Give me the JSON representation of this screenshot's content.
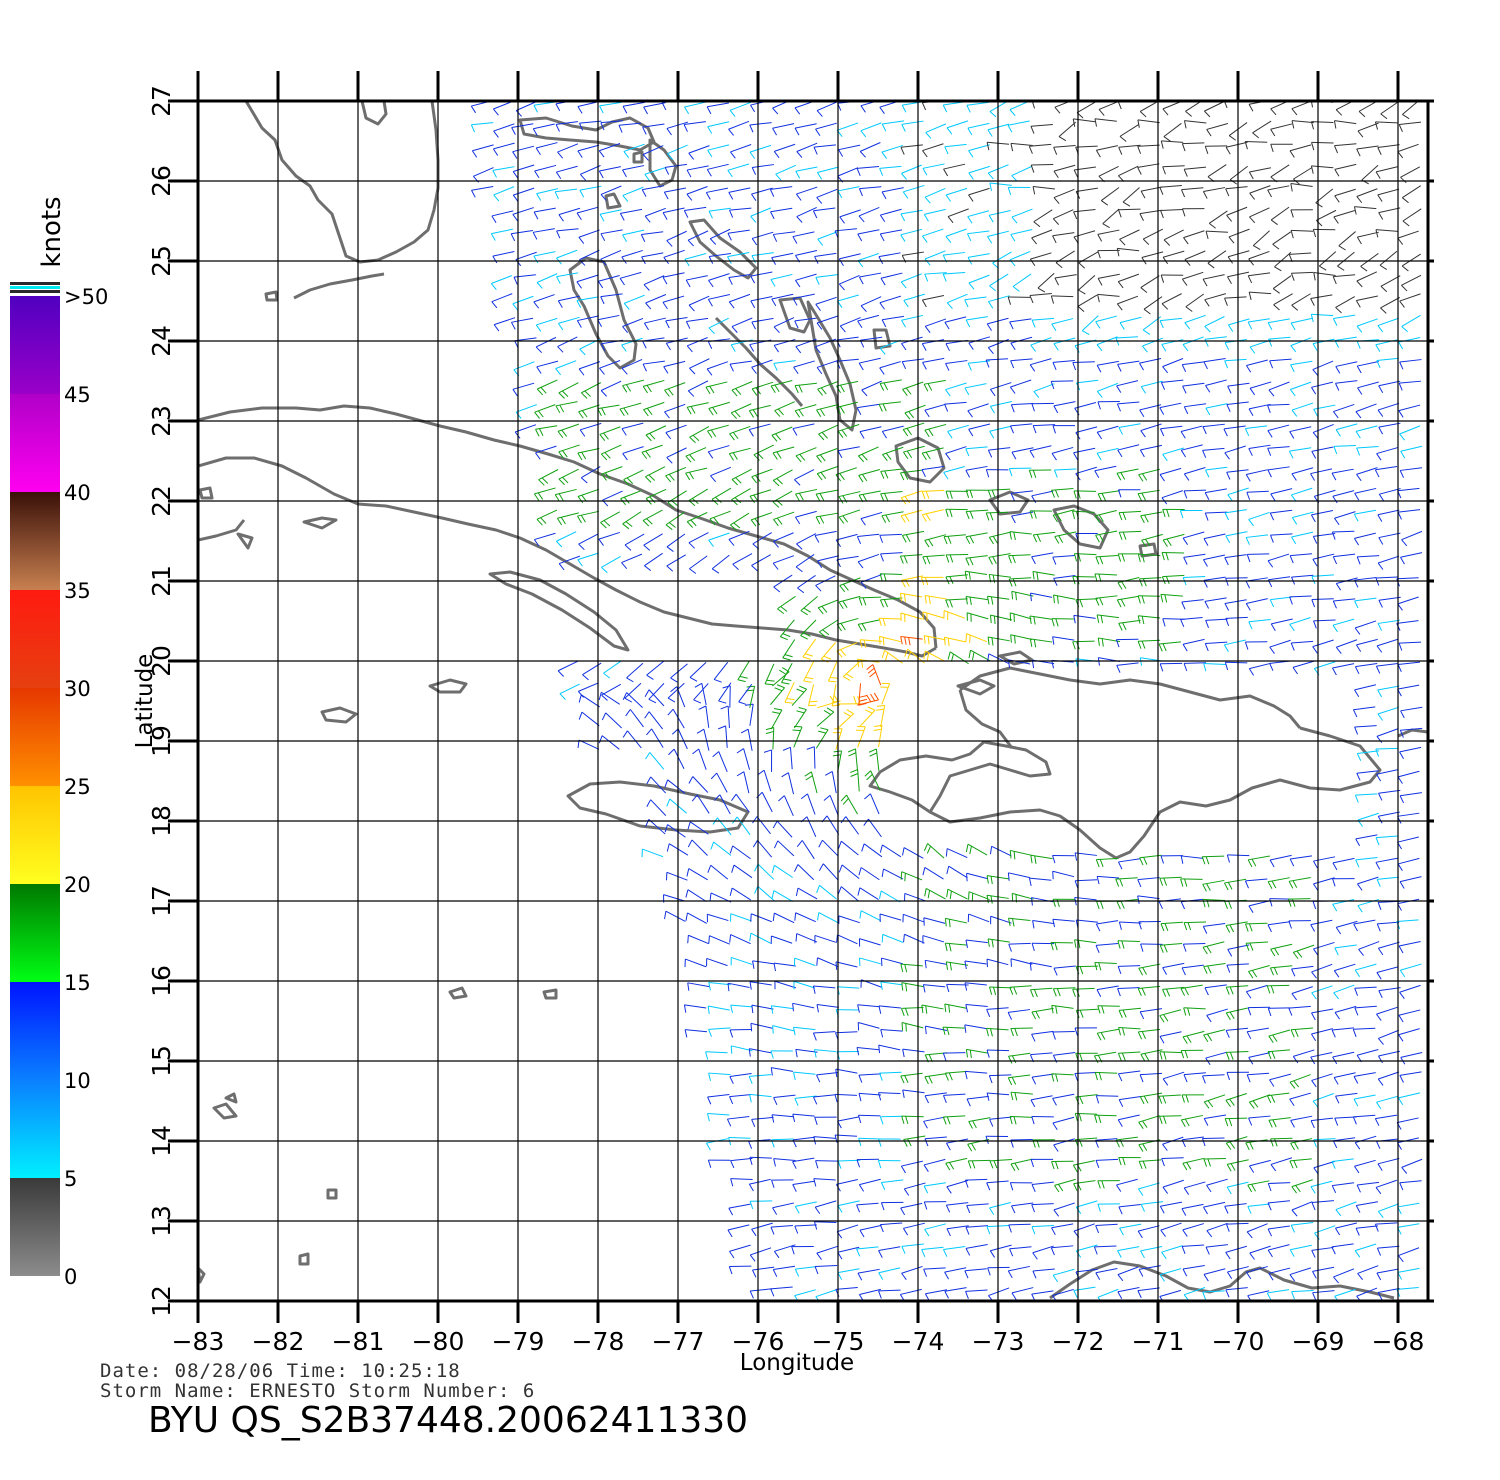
{
  "map": {
    "lon_range": [
      -83,
      -67.6
    ],
    "lat_range": [
      12,
      27
    ],
    "x_ticks": [
      "-83",
      "-82",
      "-81",
      "-80",
      "-79",
      "-78",
      "-77",
      "-76",
      "-75",
      "-74",
      "-73",
      "-72",
      "-71",
      "-70",
      "-69",
      "-68"
    ],
    "y_ticks": [
      "12",
      "13",
      "14",
      "15",
      "16",
      "17",
      "18",
      "19",
      "20",
      "21",
      "22",
      "23",
      "24",
      "25",
      "26",
      "27"
    ],
    "x_label": "Longitude",
    "y_label": "Latitude",
    "grid": true,
    "coastline_color": "#6e6e6e"
  },
  "colorbar": {
    "unit": "knots",
    "ticks": [
      "0",
      "5",
      "10",
      "15",
      "20",
      "25",
      "30",
      "35",
      "40",
      "45",
      ">50"
    ],
    "bands": [
      {
        "from": 0,
        "to": 5,
        "top": "#3a3a3a",
        "bottom": "#8c8c8c"
      },
      {
        "from": 5,
        "to": 10,
        "top": "#0a80ff",
        "bottom": "#00f0ff"
      },
      {
        "from": 10,
        "to": 15,
        "top": "#0014ff",
        "bottom": "#0a80ff"
      },
      {
        "from": 15,
        "to": 20,
        "top": "#007800",
        "bottom": "#00ff14"
      },
      {
        "from": 20,
        "to": 25,
        "top": "#ffc400",
        "bottom": "#ffff20"
      },
      {
        "from": 25,
        "to": 30,
        "top": "#e63800",
        "bottom": "#ff9000"
      },
      {
        "from": 30,
        "to": 35,
        "top": "#ff1a10",
        "bottom": "#e64010"
      },
      {
        "from": 35,
        "to": 40,
        "top": "#3a1008",
        "bottom": "#c88050"
      },
      {
        "from": 40,
        "to": 45,
        "top": "#b000c8",
        "bottom": "#ff00f0"
      },
      {
        "from": 45,
        "to": 50,
        "top": "#5000c0",
        "bottom": "#9a00c8"
      }
    ]
  },
  "info": {
    "date_line": "Date: 08/28/06   Time: 10:25:18",
    "storm_line": "Storm  Name: ERNESTO   Storm  Number: 6",
    "title": "BYU  QS_S2B37448.20062411330"
  },
  "wind_field": {
    "description_colors": {
      "calm": "#333333",
      "light": "#00c8ff",
      "moderate": "#1030e0",
      "fresh": "#10a010",
      "strong": "#ffd000",
      "gale": "#ff5000",
      "storm": "#e01010",
      "severe": "#a000c0"
    }
  }
}
